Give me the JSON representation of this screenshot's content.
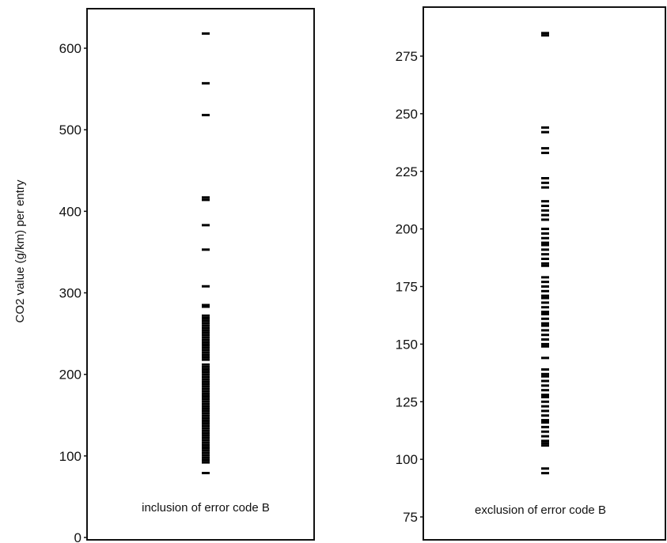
{
  "chart_data": [
    {
      "type": "scatter",
      "panel_label": "inclusion of error code B",
      "ylabel": "CO2 value (g/km) per entry",
      "ylim": [
        0,
        650
      ],
      "yticks": [
        0,
        100,
        200,
        300,
        400,
        500,
        600
      ],
      "grid": false,
      "mark": "horizontal-dash",
      "values": [
        79,
        92,
        95,
        98,
        101,
        104,
        107,
        110,
        113,
        116,
        119,
        122,
        125,
        128,
        131,
        134,
        137,
        140,
        143,
        146,
        149,
        152,
        155,
        158,
        161,
        164,
        167,
        170,
        173,
        176,
        179,
        182,
        185,
        188,
        191,
        194,
        197,
        200,
        203,
        206,
        209,
        212,
        218,
        221,
        224,
        227,
        230,
        233,
        236,
        239,
        242,
        245,
        248,
        251,
        254,
        257,
        260,
        263,
        266,
        269,
        272,
        283,
        285,
        308,
        353,
        383,
        414,
        417,
        518,
        557,
        618
      ]
    },
    {
      "type": "scatter",
      "panel_label": "exclusion of error code B",
      "ylabel": "",
      "ylim": [
        73,
        295
      ],
      "yticks": [
        75,
        100,
        125,
        150,
        175,
        200,
        225,
        250,
        275
      ],
      "grid": false,
      "mark": "horizontal-dash",
      "values": [
        94,
        96,
        106,
        107,
        108,
        110,
        112,
        114,
        116,
        117,
        119,
        121,
        123,
        125,
        127,
        128,
        130,
        132,
        134,
        136,
        137,
        139,
        144,
        149,
        150,
        152,
        154,
        156,
        158,
        159,
        161,
        163,
        164,
        166,
        168,
        170,
        171,
        173,
        175,
        177,
        179,
        184,
        185,
        187,
        189,
        191,
        193,
        194,
        196,
        198,
        200,
        204,
        206,
        208,
        210,
        212,
        218,
        220,
        222,
        233,
        235,
        242,
        244,
        284,
        285
      ]
    }
  ]
}
